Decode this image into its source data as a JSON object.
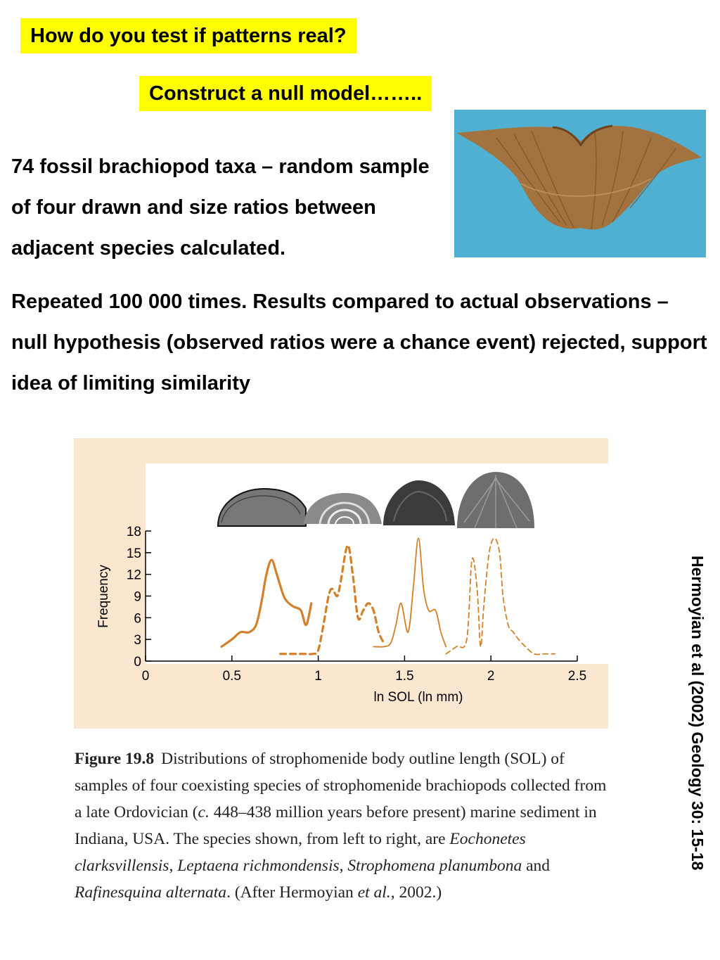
{
  "header": {
    "question": "How do you test if patterns real?",
    "answer": "Construct a null model……..",
    "para1": "74 fossil brachiopod taxa – random sample of four drawn and size ratios between adjacent species calculated.",
    "para2": "Repeated 100 000 times. Results compared to actual observations – null hypothesis (observed ratios were a chance event) rejected, support idea of limiting similarity"
  },
  "citation": "Hermoyian et al (2002) Geology 30: 15-18",
  "colors": {
    "highlight": "#ffff00",
    "panel": "#fbe6cf",
    "curve": "#d4802a",
    "photo_bg": "#4fb0d2"
  },
  "figure": {
    "label": "Figure 19.8",
    "caption_parts": [
      {
        "t": "Distributions of strophomenide body outline length (SOL) of samples of four coexisting species of strophomenide brachiopods collected from a late Ordovician (",
        "i": false
      },
      {
        "t": "c.",
        "i": true
      },
      {
        "t": " 448–438 million years before present) marine sediment in Indiana, USA. The species shown, from left to right, are ",
        "i": false
      },
      {
        "t": "Eochonetes clarksvillensis",
        "i": true
      },
      {
        "t": ", ",
        "i": false
      },
      {
        "t": "Leptaena richmondensis",
        "i": true
      },
      {
        "t": ", ",
        "i": false
      },
      {
        "t": "Strophomena planumbona",
        "i": true
      },
      {
        "t": " and ",
        "i": false
      },
      {
        "t": "Rafinesquina alternata",
        "i": true
      },
      {
        "t": ". (After Hermoyian ",
        "i": false
      },
      {
        "t": "et al.",
        "i": true
      },
      {
        "t": ", 2002.)",
        "i": false
      }
    ]
  },
  "chart_data": {
    "type": "line",
    "xlabel": "ln SOL (ln mm)",
    "ylabel": "Frequency",
    "xlim": [
      0,
      2.5
    ],
    "ylim": [
      0,
      18
    ],
    "xticks": [
      0,
      0.5,
      1,
      1.5,
      2,
      2.5
    ],
    "xtick_labels": [
      "0",
      "0.5",
      "1",
      "1.5",
      "2",
      "2.5"
    ],
    "yticks": [
      0,
      3,
      6,
      9,
      12,
      15,
      18
    ],
    "grid": false,
    "legend": "none",
    "series": [
      {
        "style": "solid-thick",
        "x": [
          0.44,
          0.5,
          0.55,
          0.6,
          0.64,
          0.67,
          0.7,
          0.73,
          0.76,
          0.8,
          0.83,
          0.86,
          0.9,
          0.93,
          0.96
        ],
        "values": [
          2,
          3,
          4,
          4,
          5,
          8,
          12,
          14,
          12,
          9,
          8,
          7.5,
          7,
          5,
          8
        ]
      },
      {
        "style": "dashed-thick",
        "x": [
          0.78,
          0.85,
          0.92,
          0.97,
          1.0,
          1.03,
          1.06,
          1.08,
          1.11,
          1.13,
          1.17,
          1.2,
          1.23,
          1.26,
          1.29,
          1.32,
          1.35,
          1.38
        ],
        "values": [
          1,
          1,
          1,
          1,
          1.5,
          5,
          9,
          10,
          9,
          11,
          16,
          12,
          6,
          7,
          8,
          7,
          4,
          2.5
        ]
      },
      {
        "style": "solid-thin",
        "x": [
          1.32,
          1.38,
          1.42,
          1.45,
          1.48,
          1.52,
          1.55,
          1.58,
          1.61,
          1.64,
          1.68,
          1.71,
          1.74
        ],
        "values": [
          2,
          2,
          2.5,
          5,
          8,
          4,
          10,
          17,
          10,
          7,
          7,
          4,
          2
        ]
      },
      {
        "style": "dashed-thin",
        "x": [
          1.74,
          1.8,
          1.86,
          1.89,
          1.92,
          1.94,
          1.96,
          1.99,
          2.02,
          2.05,
          2.07,
          2.1,
          2.13,
          2.16,
          2.2,
          2.25,
          2.31,
          2.37
        ],
        "values": [
          1,
          2,
          3,
          14,
          10,
          2,
          8,
          15,
          17,
          15,
          9,
          5,
          4,
          3,
          2,
          1,
          1,
          1
        ]
      }
    ]
  }
}
